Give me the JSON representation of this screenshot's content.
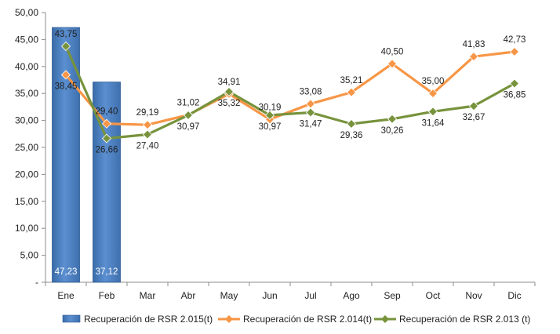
{
  "chart_data": {
    "type": "bar+line",
    "title": "",
    "xlabel": "",
    "ylabel": "",
    "categories": [
      "Ene",
      "Feb",
      "Mar",
      "Abr",
      "May",
      "Jun",
      "Jul",
      "Ago",
      "Sep",
      "Oct",
      "Nov",
      "Dic"
    ],
    "ylim": [
      0,
      50
    ],
    "yticks": [
      "-",
      "5,00",
      "10,00",
      "15,00",
      "20,00",
      "25,00",
      "30,00",
      "35,00",
      "40,00",
      "45,00",
      "50,00"
    ],
    "grid": false,
    "legend_position": "bottom",
    "series": [
      {
        "name": "Recuperación de RSR 2.015(t)",
        "type": "bar",
        "color": "#4F81BD",
        "values": [
          47.23,
          37.12,
          null,
          null,
          null,
          null,
          null,
          null,
          null,
          null,
          null,
          null
        ],
        "labels": [
          "47,23",
          "37,12"
        ]
      },
      {
        "name": "Recuperación de RSR 2.014(t)",
        "type": "line",
        "color": "#F79646",
        "values": [
          38.45,
          29.4,
          29.19,
          31.02,
          34.91,
          30.19,
          33.08,
          35.21,
          40.5,
          35.0,
          41.83,
          42.73
        ],
        "labels": [
          "38,45",
          "29,40",
          "29,19",
          "31,02",
          "34,91",
          "30,19",
          "33,08",
          "35,21",
          "40,50",
          "35,00",
          "41,83",
          "42,73"
        ]
      },
      {
        "name": "Recuperación de RSR 2.013 (t)",
        "type": "line",
        "color": "#77933C",
        "values": [
          43.75,
          26.66,
          27.4,
          30.97,
          35.32,
          30.97,
          31.47,
          29.36,
          30.26,
          31.64,
          32.67,
          36.85
        ],
        "labels": [
          "43,75",
          "26,66",
          "27,40",
          "30,97",
          "35,32",
          "30,97",
          "31,47",
          "29,36",
          "30,26",
          "31,64",
          "32,67",
          "36,85"
        ]
      }
    ]
  }
}
